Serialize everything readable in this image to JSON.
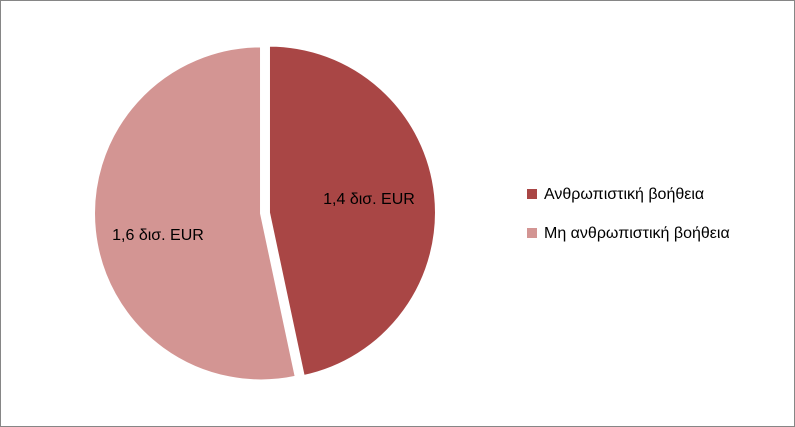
{
  "chart_data": {
    "type": "pie",
    "title": "",
    "values": [
      1.4,
      1.6
    ],
    "categories": [
      "Ανθρωπιστική βοήθεια",
      "Μη ανθρωπιστική βοήθεια"
    ],
    "labels": [
      "1,4 δισ. EUR",
      "1,6 δισ. EUR"
    ],
    "colors": [
      "#a94645",
      "#d39593"
    ],
    "exploded": true,
    "legend": {
      "position": "right",
      "entries": [
        "Ανθρωπιστική βοήθεια",
        "Μη ανθρωπιστική βοήθεια"
      ]
    }
  }
}
